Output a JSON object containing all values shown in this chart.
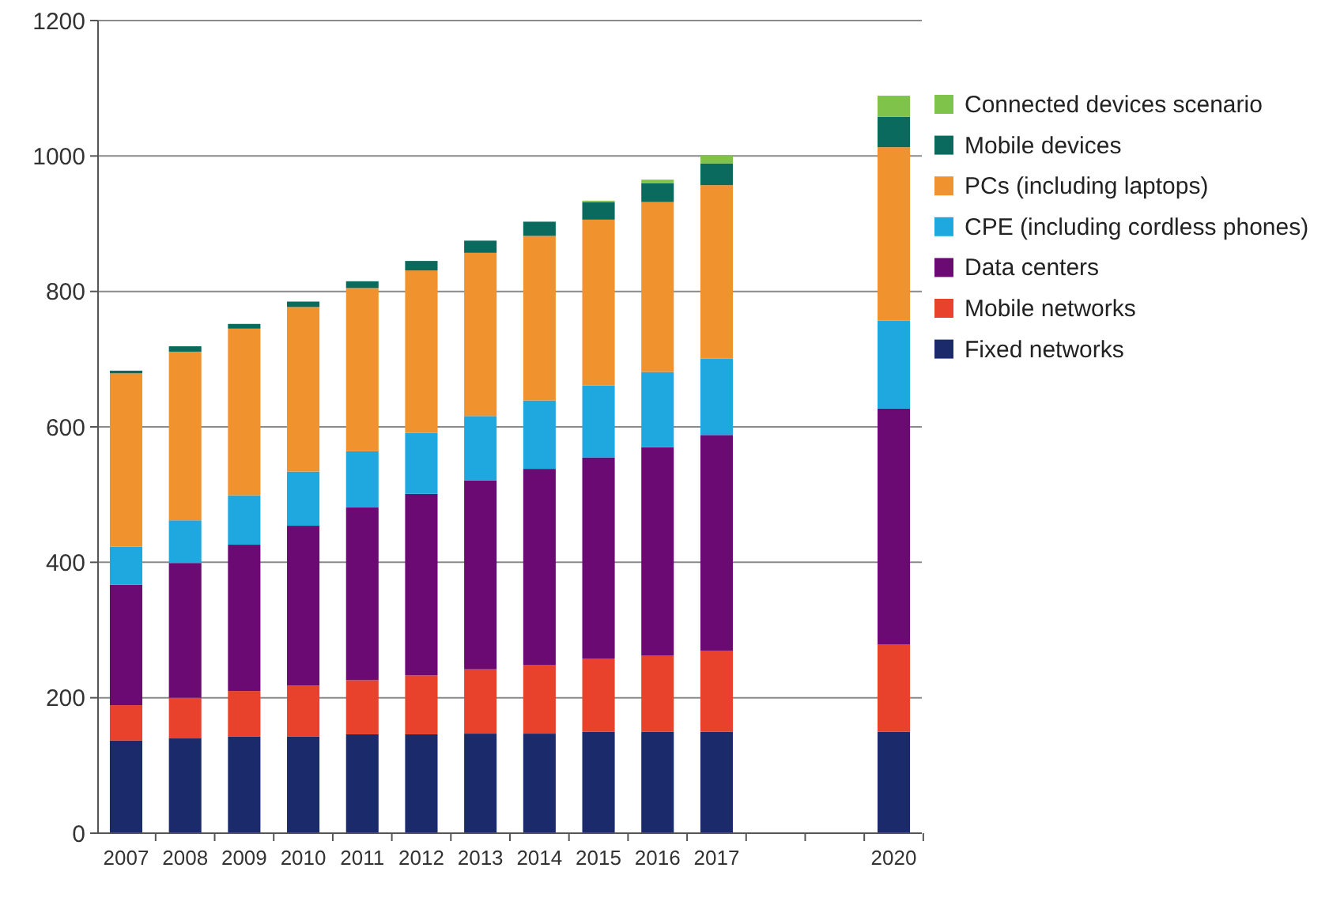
{
  "chart_data": {
    "type": "bar",
    "stacked": true,
    "categories": [
      "2007",
      "2008",
      "2009",
      "2010",
      "2011",
      "2012",
      "2013",
      "2014",
      "2015",
      "2016",
      "2017",
      null,
      null,
      "2020"
    ],
    "series": [
      {
        "name": "Fixed networks",
        "color": "#1b2a6b",
        "values": [
          137,
          140,
          143,
          143,
          146,
          146,
          147,
          147,
          150,
          150,
          150,
          null,
          null,
          150
        ]
      },
      {
        "name": "Mobile networks",
        "color": "#e8412c",
        "values": [
          52,
          60,
          67,
          75,
          80,
          87,
          95,
          101,
          108,
          112,
          119,
          null,
          null,
          129
        ]
      },
      {
        "name": "Data centers",
        "color": "#6b0a72",
        "values": [
          178,
          199,
          216,
          236,
          255,
          268,
          279,
          290,
          297,
          308,
          319,
          null,
          null,
          348
        ]
      },
      {
        "name": "CPE (including cordless phones)",
        "color": "#1fa8e0",
        "values": [
          56,
          63,
          73,
          80,
          83,
          90,
          95,
          101,
          106,
          111,
          113,
          null,
          null,
          130
        ]
      },
      {
        "name": "PCs (including laptops)",
        "color": "#f0922e",
        "values": [
          256,
          249,
          246,
          243,
          241,
          240,
          241,
          243,
          245,
          251,
          256,
          null,
          null,
          256
        ]
      },
      {
        "name": "Mobile devices",
        "color": "#0b6a5e",
        "values": [
          4,
          8,
          7,
          8,
          10,
          14,
          18,
          21,
          26,
          28,
          32,
          null,
          null,
          45
        ]
      },
      {
        "name": "Connected devices scenario",
        "color": "#7fc34a",
        "values": [
          0,
          0,
          0,
          0,
          0,
          0,
          0,
          null,
          2,
          5,
          12,
          null,
          null,
          31
        ]
      }
    ],
    "ylim": [
      0,
      1200
    ],
    "yticks": [
      0,
      200,
      400,
      600,
      800,
      1000,
      1200
    ],
    "grid": "y",
    "legend": "right"
  }
}
